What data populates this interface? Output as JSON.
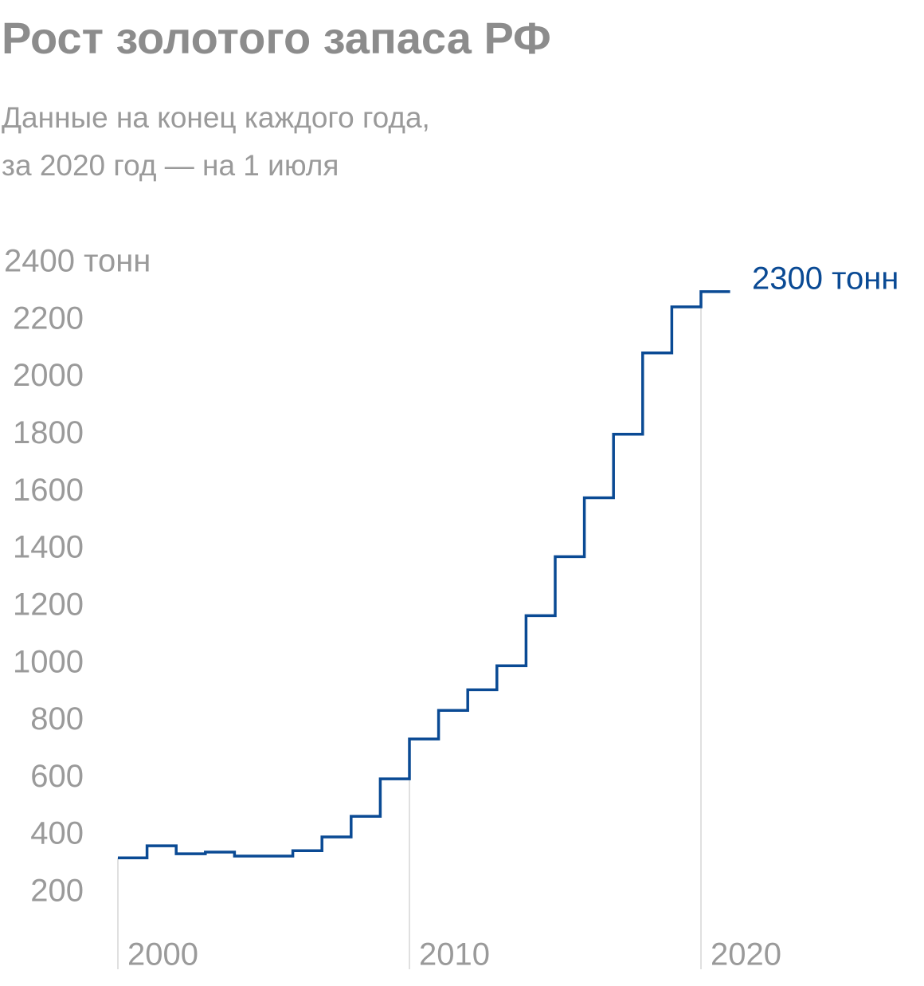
{
  "chart_data": {
    "type": "step",
    "title": "Рост золотого запаса РФ",
    "subtitle": [
      "Данные на конец каждого года,",
      "за 2020 год — на 1 июля"
    ],
    "annotation": "2300 тонн",
    "x": [
      2000,
      2001,
      2002,
      2003,
      2004,
      2005,
      2006,
      2007,
      2008,
      2009,
      2010,
      2011,
      2012,
      2013,
      2014,
      2015,
      2016,
      2017,
      2018,
      2019,
      2020
    ],
    "values": [
      322,
      364,
      336,
      342,
      328,
      328,
      347,
      395,
      467,
      598,
      737,
      837,
      909,
      993,
      1168,
      1374,
      1580,
      1802,
      2086,
      2247,
      2300
    ],
    "color": "#0a4a94",
    "xlim": [
      2000,
      2020
    ],
    "xticks": [
      2000,
      2010,
      2020
    ],
    "ylim": [
      200,
      2400
    ],
    "yticks": [
      200,
      400,
      600,
      800,
      1000,
      1200,
      1400,
      1600,
      1800,
      2000,
      2200,
      {
        "value": 2400,
        "label": "2400 тонн"
      }
    ]
  }
}
